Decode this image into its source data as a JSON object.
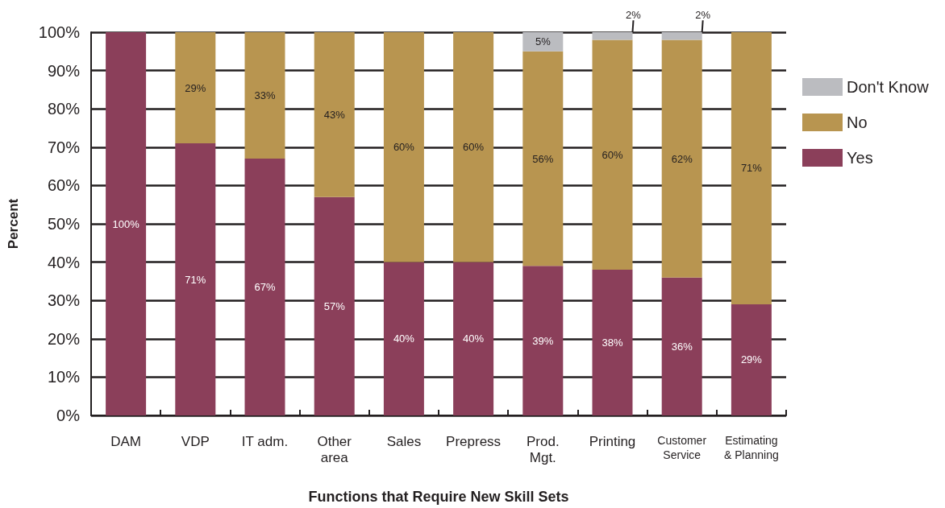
{
  "chart_data": {
    "type": "bar",
    "stacked": true,
    "xlabel": "Functions that Require New Skill Sets",
    "ylabel": "Percent",
    "categories": [
      "DAM",
      "VDP",
      "IT adm.",
      "Other\narea",
      "Sales",
      "Prepress",
      "Prod.\nMgt.",
      "Printing",
      "Customer\nService",
      "Estimating\n& Planning"
    ],
    "series": [
      {
        "name": "Yes",
        "color": "#8b3f5a",
        "values": [
          100,
          71,
          67,
          57,
          40,
          40,
          39,
          38,
          36,
          29
        ],
        "value_labels": [
          "100%",
          "71%",
          "67%",
          "57%",
          "40%",
          "40%",
          "39%",
          "38%",
          "36%",
          "29%"
        ]
      },
      {
        "name": "No",
        "color": "#b89550",
        "values": [
          null,
          29,
          33,
          43,
          60,
          60,
          56,
          60,
          62,
          71
        ],
        "value_labels": [
          null,
          "29%",
          "33%",
          "43%",
          "60%",
          "60%",
          "56%",
          "60%",
          "62%",
          "71%"
        ]
      },
      {
        "name": "Don't Know",
        "color": "#bbbcc0",
        "values": [
          null,
          null,
          null,
          null,
          null,
          null,
          5,
          2,
          2,
          null
        ],
        "value_labels": [
          null,
          null,
          null,
          null,
          null,
          null,
          "5%",
          "2%",
          "2%",
          null
        ]
      }
    ],
    "ylim": [
      0,
      100
    ],
    "yticks": [
      {
        "value": 0,
        "label": "0%"
      },
      {
        "value": 10,
        "label": "10%"
      },
      {
        "value": 20,
        "label": "20%"
      },
      {
        "value": 30,
        "label": "30%"
      },
      {
        "value": 40,
        "label": "40%"
      },
      {
        "value": 50,
        "label": "50%"
      },
      {
        "value": 60,
        "label": "60%"
      },
      {
        "value": 70,
        "label": "70%"
      },
      {
        "value": 80,
        "label": "80%"
      },
      {
        "value": 90,
        "label": "90%"
      },
      {
        "value": 100,
        "label": "100%"
      }
    ],
    "grid": "y",
    "legend": "right"
  }
}
